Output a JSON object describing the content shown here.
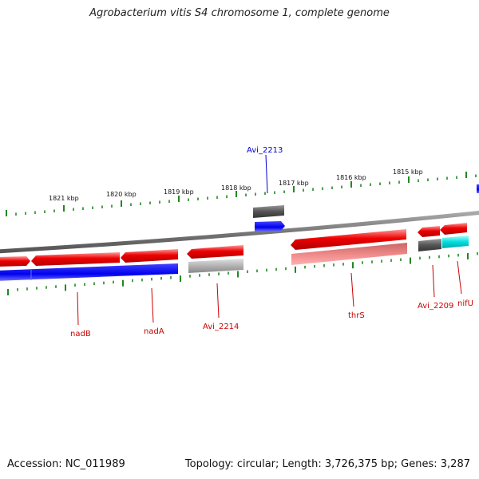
{
  "title": "Agrobacterium vitis S4 chromosome 1, complete genome",
  "footer": {
    "accession": "Accession: NC_011989",
    "topology": "Topology: circular; Length: 3,726,375 bp; Genes: 3,287"
  },
  "colors": {
    "forward_gene": "#ee0000",
    "reverse_gene": "#0000ee",
    "cds_cyan": "#00dddd",
    "dark_gray_gene": "#555555",
    "light_gray_gene": "#aaaaaa",
    "pink_gene": "#ee7777",
    "backbone": "#777777",
    "ticks": "#228822",
    "label_red": "#cc0000",
    "label_blue": "#0000cc"
  },
  "scale_labels": [
    "1821 kbp",
    "1820 kbp",
    "1819 kbp",
    "1818 kbp",
    "1817 kbp",
    "1816 kbp",
    "1815 kbp"
  ],
  "gene_labels": [
    {
      "text": "Avi_2213",
      "color": "blue"
    },
    {
      "text": "nadB",
      "color": "red"
    },
    {
      "text": "nadA",
      "color": "red"
    },
    {
      "text": "Avi_2214",
      "color": "red"
    },
    {
      "text": "thrS",
      "color": "red"
    },
    {
      "text": "Avi_2209",
      "color": "red"
    },
    {
      "text": "nifU",
      "color": "red"
    }
  ]
}
